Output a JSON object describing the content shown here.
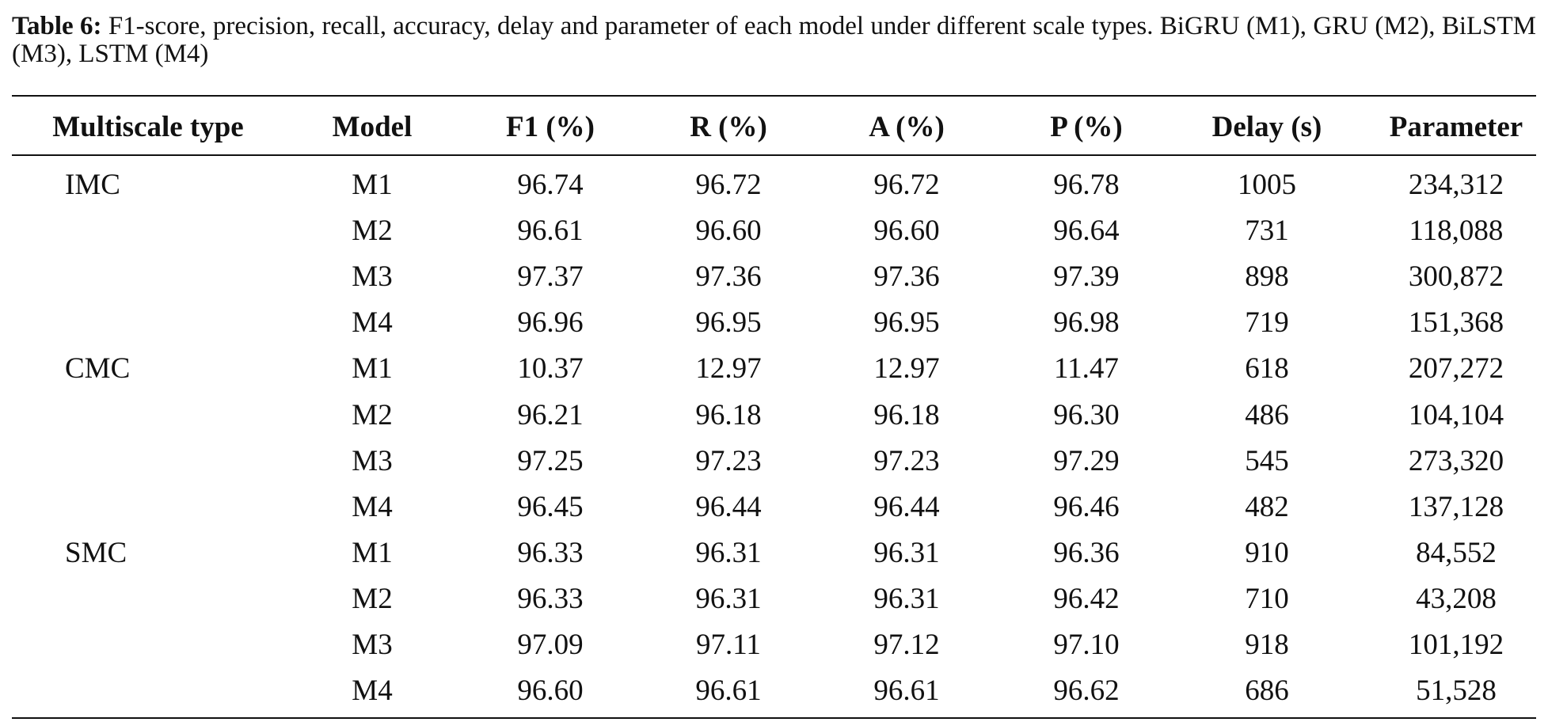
{
  "caption": {
    "label": "Table 6:",
    "text": "F1-score, precision, recall, accuracy, delay and parameter of each model under different scale types. BiGRU (M1), GRU (M2), BiLSTM (M3), LSTM (M4)"
  },
  "table": {
    "header": [
      "Multiscale type",
      "Model",
      "F1 (%)",
      "R (%)",
      "A (%)",
      "P (%)",
      "Delay (s)",
      "Parameter"
    ],
    "groups": [
      {
        "type": "IMC",
        "rows": [
          [
            "M1",
            "96.74",
            "96.72",
            "96.72",
            "96.78",
            "1005",
            "234,312"
          ],
          [
            "M2",
            "96.61",
            "96.60",
            "96.60",
            "96.64",
            "731",
            "118,088"
          ],
          [
            "M3",
            "97.37",
            "97.36",
            "97.36",
            "97.39",
            "898",
            "300,872"
          ],
          [
            "M4",
            "96.96",
            "96.95",
            "96.95",
            "96.98",
            "719",
            "151,368"
          ]
        ]
      },
      {
        "type": "CMC",
        "rows": [
          [
            "M1",
            "10.37",
            "12.97",
            "12.97",
            "11.47",
            "618",
            "207,272"
          ],
          [
            "M2",
            "96.21",
            "96.18",
            "96.18",
            "96.30",
            "486",
            "104,104"
          ],
          [
            "M3",
            "97.25",
            "97.23",
            "97.23",
            "97.29",
            "545",
            "273,320"
          ],
          [
            "M4",
            "96.45",
            "96.44",
            "96.44",
            "96.46",
            "482",
            "137,128"
          ]
        ]
      },
      {
        "type": "SMC",
        "rows": [
          [
            "M1",
            "96.33",
            "96.31",
            "96.31",
            "96.36",
            "910",
            "84,552"
          ],
          [
            "M2",
            "96.33",
            "96.31",
            "96.31",
            "96.42",
            "710",
            "43,208"
          ],
          [
            "M3",
            "97.09",
            "97.11",
            "97.12",
            "97.10",
            "918",
            "101,192"
          ],
          [
            "M4",
            "96.60",
            "96.61",
            "96.61",
            "96.62",
            "686",
            "51,528"
          ]
        ]
      }
    ]
  }
}
